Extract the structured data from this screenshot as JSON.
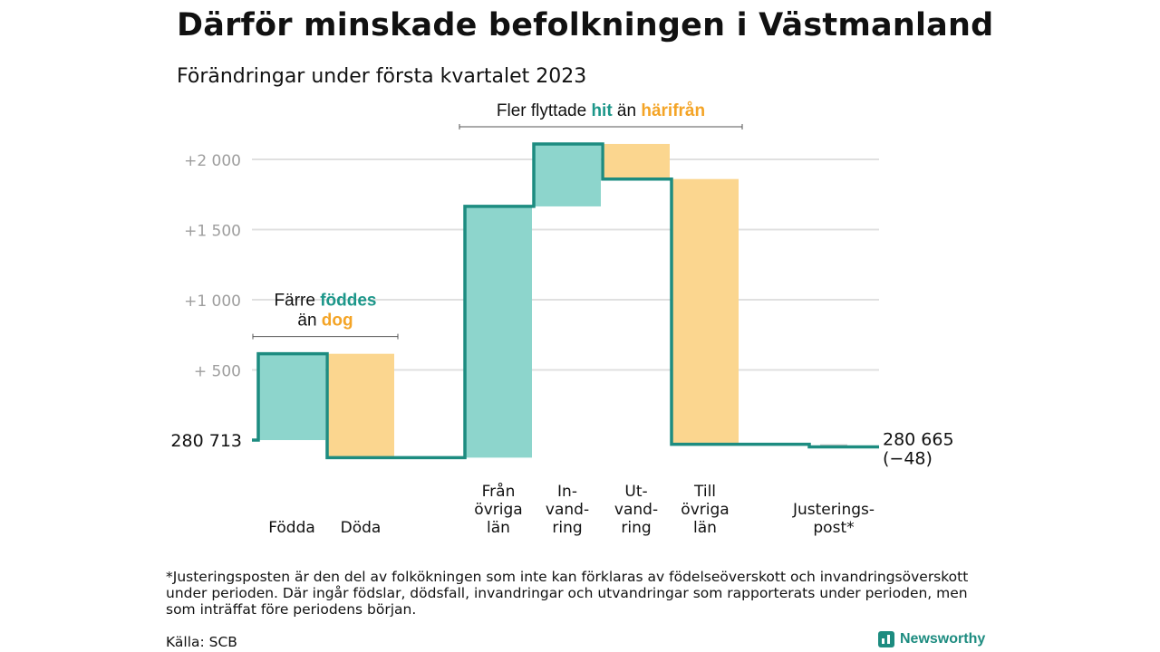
{
  "title": "Därför minskade befolkningen i Västmanland",
  "subtitle": "Förändringar under första kvartalet 2023",
  "footnote": "*Justeringsposten är den del av folkökningen som inte kan förklaras av födelseöverskott och invandringsöverskott under perioden. Där ingår födslar, dödsfall, invandringar och utvandringar som rapporterats under perioden, men som inträffat före periodens början.",
  "source": "Källa: SCB",
  "brand": {
    "name": "Newsworthy",
    "icon": "bar-chart-icon"
  },
  "colors": {
    "positive": "#8dd5cc",
    "negative": "#fbd68f",
    "adjustment": "#c8c8c8",
    "line": "#1d8c80",
    "accent_teal": "#1d978a",
    "accent_orange": "#f4a426",
    "axis_text": "#9e9e9e",
    "grid": "#e0e0e0"
  },
  "chart_data": {
    "type": "waterfall",
    "baseline": 280713,
    "start_label": "280 713",
    "end_label": "280 665",
    "end_change_label": "(−48)",
    "y_ticks": [
      {
        "value": 500,
        "label": "+ 500"
      },
      {
        "value": 1000,
        "label": "+1 000"
      },
      {
        "value": 1500,
        "label": "+1 500"
      },
      {
        "value": 2000,
        "label": "+2 000"
      }
    ],
    "ylim": [
      -150,
      2250
    ],
    "grid": true,
    "steps": [
      {
        "label": [
          "Födda"
        ],
        "value": 615,
        "kind": "positive"
      },
      {
        "label": [
          "Döda"
        ],
        "value": -740,
        "kind": "negative"
      },
      {
        "label": [],
        "value": 0,
        "kind": "gap"
      },
      {
        "label": [
          "Från",
          "övriga",
          "län"
        ],
        "value": 1790,
        "kind": "positive"
      },
      {
        "label": [
          "In-",
          "vand-",
          "ring"
        ],
        "value": 445,
        "kind": "positive"
      },
      {
        "label": [
          "Ut-",
          "vand-",
          "ring"
        ],
        "value": -250,
        "kind": "negative"
      },
      {
        "label": [
          "Till",
          "övriga",
          "län"
        ],
        "value": -1890,
        "kind": "negative"
      },
      {
        "label": [],
        "value": 0,
        "kind": "gap"
      },
      {
        "label": [
          "Justerings-",
          "post*"
        ],
        "value": -18,
        "kind": "adjustment"
      }
    ],
    "annotations": [
      {
        "lines": [
          [
            {
              "text": "Färre ",
              "color": "text"
            },
            {
              "text": "föddes",
              "color": "teal"
            }
          ],
          [
            {
              "text": "än ",
              "color": "text"
            },
            {
              "text": "dog",
              "color": "orange"
            }
          ]
        ],
        "span": [
          0,
          1
        ]
      },
      {
        "lines": [
          [
            {
              "text": "Fler flyttade ",
              "color": "text"
            },
            {
              "text": "hit",
              "color": "teal"
            },
            {
              "text": " än ",
              "color": "text"
            },
            {
              "text": "härifrån",
              "color": "orange"
            }
          ]
        ],
        "span": [
          3,
          6
        ]
      }
    ]
  }
}
